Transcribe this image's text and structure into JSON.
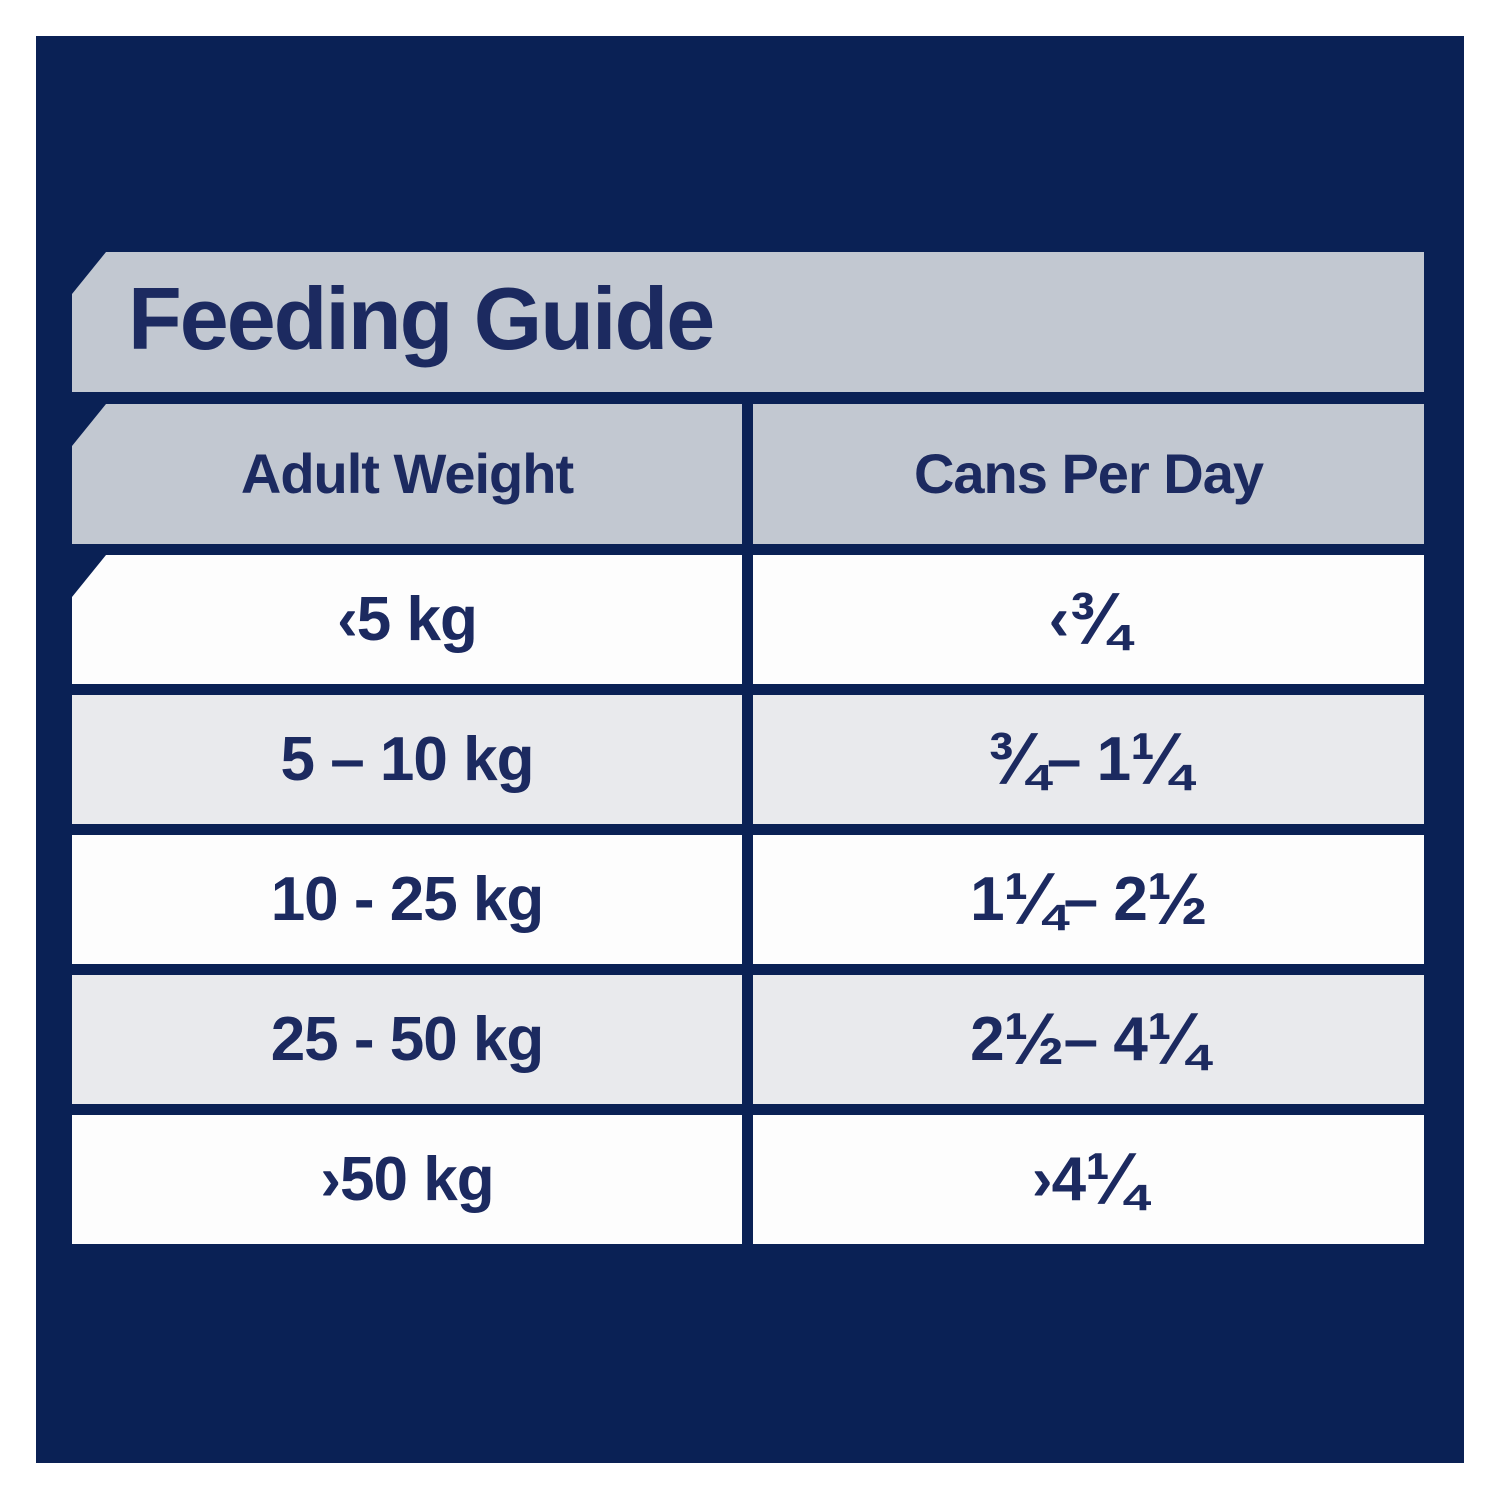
{
  "colors": {
    "panel_navy": "#0a2155",
    "grid_navy": "#0a2155",
    "banner_gray": "#c2c8d1",
    "row_alt_gray": "#e9eaed",
    "row_white": "#fdfdfd",
    "text_navy": "#1c2a60"
  },
  "chart_data": {
    "type": "table",
    "title": "Feeding Guide",
    "columns": [
      "Adult Weight",
      "Cans Per Day"
    ],
    "rows": [
      [
        "‹5 kg",
        "‹¾"
      ],
      [
        "5 – 10 kg",
        "¾ – 1 ¼"
      ],
      [
        "10 - 25 kg",
        "1 ¼ – 2 ½"
      ],
      [
        "25 - 50 kg",
        "2 ½ – 4 ¼"
      ],
      [
        "›50 kg",
        "›4 ¼"
      ]
    ],
    "rows_parsed": [
      {
        "weight_kg_min": null,
        "weight_kg_max": 5,
        "cans_min": null,
        "cans_max": 0.75
      },
      {
        "weight_kg_min": 5,
        "weight_kg_max": 10,
        "cans_min": 0.75,
        "cans_max": 1.25
      },
      {
        "weight_kg_min": 10,
        "weight_kg_max": 25,
        "cans_min": 1.25,
        "cans_max": 2.5
      },
      {
        "weight_kg_min": 25,
        "weight_kg_max": 50,
        "cans_min": 2.5,
        "cans_max": 4.25
      },
      {
        "weight_kg_min": 50,
        "weight_kg_max": null,
        "cans_min": 4.25,
        "cans_max": null
      }
    ]
  }
}
